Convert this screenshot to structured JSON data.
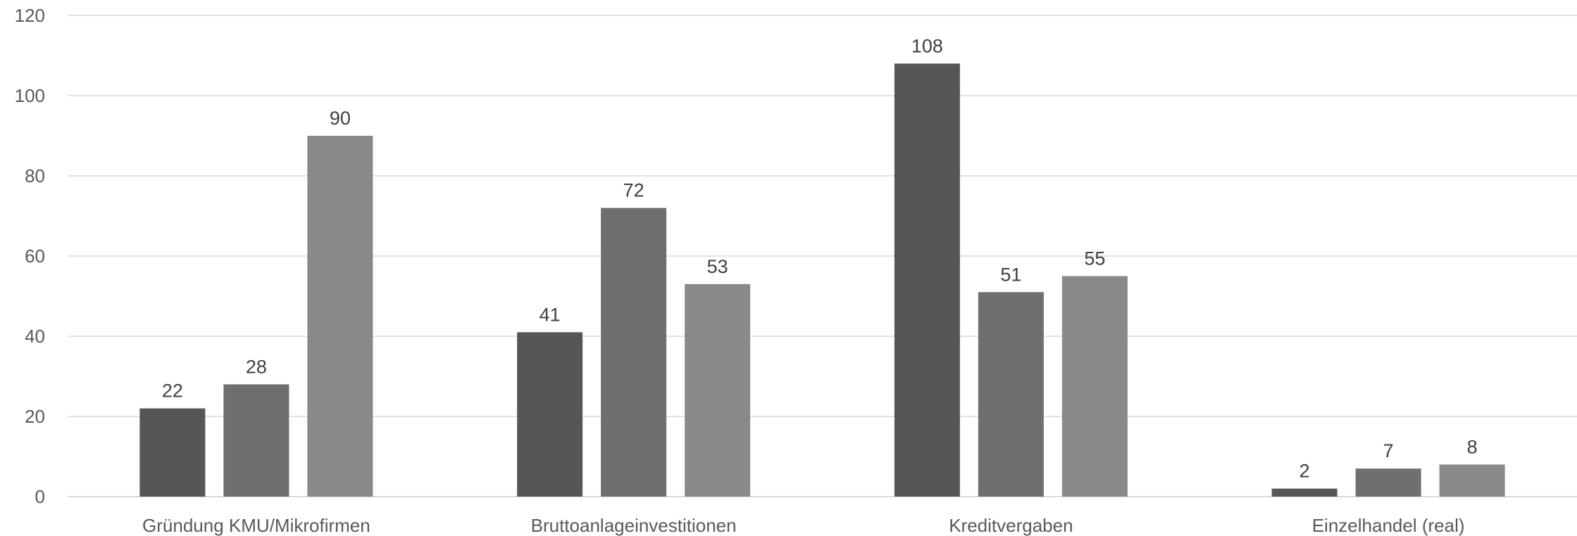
{
  "chart_data": {
    "type": "bar",
    "title": "",
    "xlabel": "",
    "ylabel": "",
    "ylim": [
      0,
      120
    ],
    "yticks": [
      0,
      20,
      40,
      60,
      80,
      100,
      120
    ],
    "grid": true,
    "legend": "none",
    "categories": [
      "Gründung KMU/Mikrofirmen",
      "Bruttoanlageinvestitionen",
      "Kreditvergaben",
      "Einzelhandel (real)"
    ],
    "series": [
      {
        "values": [
          22,
          41,
          108,
          2
        ],
        "color": "#565656"
      },
      {
        "values": [
          28,
          72,
          51,
          7
        ],
        "color": "#6f6f6f"
      },
      {
        "values": [
          90,
          53,
          55,
          8
        ],
        "color": "#898989"
      }
    ]
  }
}
